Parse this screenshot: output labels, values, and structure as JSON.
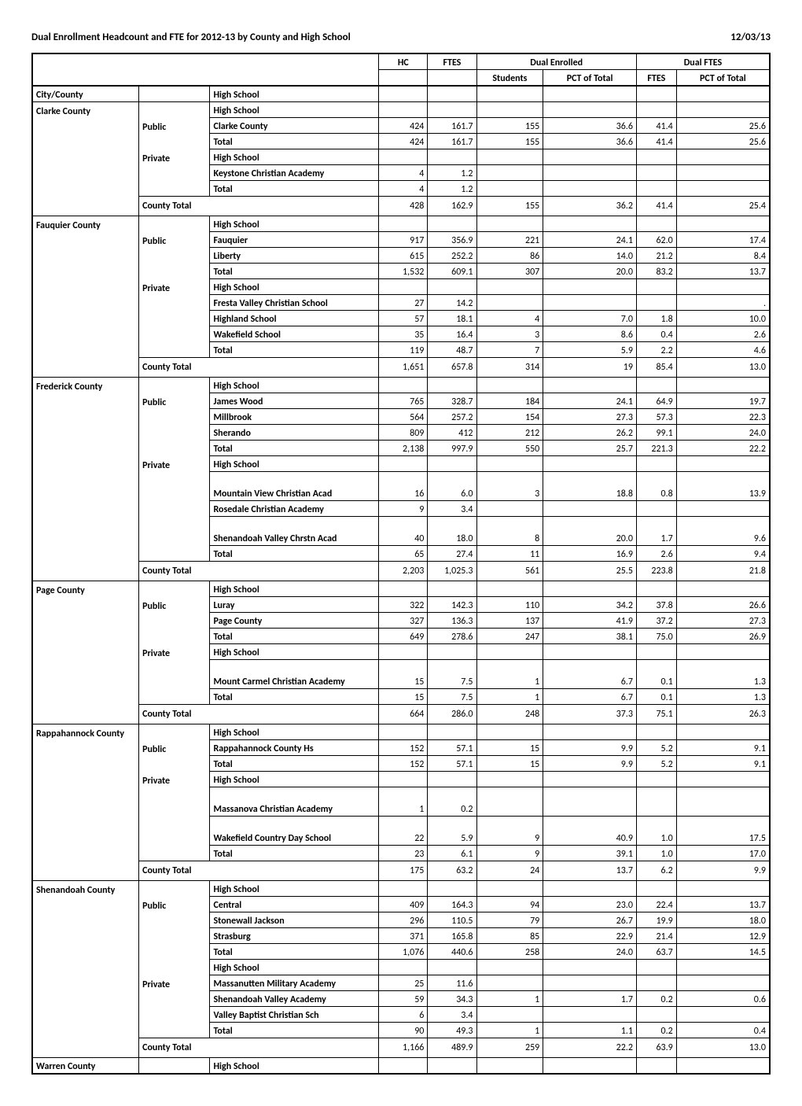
{
  "title": "Dual Enrollment Headcount and FTE for 2012-13 by County and High School",
  "date": "12/03/13",
  "headers": {
    "hc": "HC",
    "ftes": "FTES",
    "dual_enrolled": "Dual Enrolled",
    "dual_ftes": "Dual FTES",
    "students": "Students",
    "pct_of_total": "PCT of Total",
    "ftes2": "FTES",
    "pct_of_total2": "PCT of Total",
    "city_county": "City/County",
    "high_school": "High School"
  },
  "labels": {
    "public": "Public",
    "private": "Private",
    "total": "Total",
    "county_total": "County Total",
    "high_school": "High School"
  },
  "counties": [
    {
      "name": "Clarke County",
      "public": [
        {
          "name": "Clarke County",
          "hc": "424",
          "ftes": "161.7",
          "students": "155",
          "pct1": "36.6",
          "ftes2": "41.4",
          "pct2": "25.6"
        }
      ],
      "public_total": {
        "hc": "424",
        "ftes": "161.7",
        "students": "155",
        "pct1": "36.6",
        "ftes2": "41.4",
        "pct2": "25.6"
      },
      "private": [
        {
          "name": "Keystone Christian Academy",
          "hc": "4",
          "ftes": "1.2",
          "students": "",
          "pct1": "",
          "ftes2": "",
          "pct2": ""
        }
      ],
      "private_total": {
        "hc": "4",
        "ftes": "1.2",
        "students": "",
        "pct1": "",
        "ftes2": "",
        "pct2": ""
      },
      "county_total": {
        "hc": "428",
        "ftes": "162.9",
        "students": "155",
        "pct1": "36.2",
        "ftes2": "41.4",
        "pct2": "25.4"
      }
    },
    {
      "name": "Fauquier County",
      "public": [
        {
          "name": "Fauquier",
          "hc": "917",
          "ftes": "356.9",
          "students": "221",
          "pct1": "24.1",
          "ftes2": "62.0",
          "pct2": "17.4"
        },
        {
          "name": "Liberty",
          "hc": "615",
          "ftes": "252.2",
          "students": "86",
          "pct1": "14.0",
          "ftes2": "21.2",
          "pct2": "8.4"
        }
      ],
      "public_total": {
        "hc": "1,532",
        "ftes": "609.1",
        "students": "307",
        "pct1": "20.0",
        "ftes2": "83.2",
        "pct2": "13.7"
      },
      "private": [
        {
          "name": "Fresta Valley Christian School",
          "hc": "27",
          "ftes": "14.2",
          "students": "",
          "pct1": "",
          "ftes2": "",
          "pct2": "."
        },
        {
          "name": "Highland School",
          "hc": "57",
          "ftes": "18.1",
          "students": "4",
          "pct1": "7.0",
          "ftes2": "1.8",
          "pct2": "10.0"
        },
        {
          "name": "Wakefield School",
          "hc": "35",
          "ftes": "16.4",
          "students": "3",
          "pct1": "8.6",
          "ftes2": "0.4",
          "pct2": "2.6"
        }
      ],
      "private_total": {
        "hc": "119",
        "ftes": "48.7",
        "students": "7",
        "pct1": "5.9",
        "ftes2": "2.2",
        "pct2": "4.6"
      },
      "county_total": {
        "hc": "1,651",
        "ftes": "657.8",
        "students": "314",
        "pct1": "19",
        "ftes2": "85.4",
        "pct2": "13.0"
      }
    },
    {
      "name": "Frederick County",
      "public": [
        {
          "name": "James Wood",
          "hc": "765",
          "ftes": "328.7",
          "students": "184",
          "pct1": "24.1",
          "ftes2": "64.9",
          "pct2": "19.7"
        },
        {
          "name": "Millbrook",
          "hc": "564",
          "ftes": "257.2",
          "students": "154",
          "pct1": "27.3",
          "ftes2": "57.3",
          "pct2": "22.3"
        },
        {
          "name": "Sherando",
          "hc": "809",
          "ftes": "412",
          "students": "212",
          "pct1": "26.2",
          "ftes2": "99.1",
          "pct2": "24.0"
        }
      ],
      "public_total": {
        "hc": "2,138",
        "ftes": "997.9",
        "students": "550",
        "pct1": "25.7",
        "ftes2": "221.3",
        "pct2": "22.2"
      },
      "private": [
        {
          "name": "Mountain View Christian Acad",
          "tall": true,
          "hc": "16",
          "ftes": "6.0",
          "students": "3",
          "pct1": "18.8",
          "ftes2": "0.8",
          "pct2": "13.9"
        },
        {
          "name": "Rosedale Christian Academy",
          "hc": "9",
          "ftes": "3.4",
          "students": "",
          "pct1": "",
          "ftes2": "",
          "pct2": ""
        },
        {
          "name": "Shenandoah Valley Chrstn Acad",
          "tall": true,
          "hc": "40",
          "ftes": "18.0",
          "students": "8",
          "pct1": "20.0",
          "ftes2": "1.7",
          "pct2": "9.6"
        }
      ],
      "private_total": {
        "hc": "65",
        "ftes": "27.4",
        "students": "11",
        "pct1": "16.9",
        "ftes2": "2.6",
        "pct2": "9.4"
      },
      "county_total": {
        "hc": "2,203",
        "ftes": "1,025.3",
        "students": "561",
        "pct1": "25.5",
        "ftes2": "223.8",
        "pct2": "21.8"
      }
    },
    {
      "name": "Page County",
      "public": [
        {
          "name": "Luray",
          "hc": "322",
          "ftes": "142.3",
          "students": "110",
          "pct1": "34.2",
          "ftes2": "37.8",
          "pct2": "26.6"
        },
        {
          "name": "Page County",
          "hc": "327",
          "ftes": "136.3",
          "students": "137",
          "pct1": "41.9",
          "ftes2": "37.2",
          "pct2": "27.3"
        }
      ],
      "public_total": {
        "hc": "649",
        "ftes": "278.6",
        "students": "247",
        "pct1": "38.1",
        "ftes2": "75.0",
        "pct2": "26.9"
      },
      "private": [
        {
          "name": "Mount Carmel Christian Academy",
          "tall": true,
          "hc": "15",
          "ftes": "7.5",
          "students": "1",
          "pct1": "6.7",
          "ftes2": "0.1",
          "pct2": "1.3"
        }
      ],
      "private_total": {
        "hc": "15",
        "ftes": "7.5",
        "students": "1",
        "pct1": "6.7",
        "ftes2": "0.1",
        "pct2": "1.3"
      },
      "county_total": {
        "hc": "664",
        "ftes": "286.0",
        "students": "248",
        "pct1": "37.3",
        "ftes2": "75.1",
        "pct2": "26.3"
      }
    },
    {
      "name": "Rappahannock County",
      "public": [
        {
          "name": "Rappahannock County Hs",
          "hc": "152",
          "ftes": "57.1",
          "students": "15",
          "pct1": "9.9",
          "ftes2": "5.2",
          "pct2": "9.1"
        }
      ],
      "public_total": {
        "hc": "152",
        "ftes": "57.1",
        "students": "15",
        "pct1": "9.9",
        "ftes2": "5.2",
        "pct2": "9.1"
      },
      "private": [
        {
          "name": "Massanova Christian Academy",
          "tall": true,
          "hc": "1",
          "ftes": "0.2",
          "students": "",
          "pct1": "",
          "ftes2": "",
          "pct2": ""
        },
        {
          "name": "Wakefield Country Day School",
          "tall": true,
          "hc": "22",
          "ftes": "5.9",
          "students": "9",
          "pct1": "40.9",
          "ftes2": "1.0",
          "pct2": "17.5"
        }
      ],
      "private_total": {
        "hc": "23",
        "ftes": "6.1",
        "students": "9",
        "pct1": "39.1",
        "ftes2": "1.0",
        "pct2": "17.0"
      },
      "county_total": {
        "hc": "175",
        "ftes": "63.2",
        "students": "24",
        "pct1": "13.7",
        "ftes2": "6.2",
        "pct2": "9.9"
      }
    },
    {
      "name": "Shenandoah County",
      "public": [
        {
          "name": "Central",
          "hc": "409",
          "ftes": "164.3",
          "students": "94",
          "pct1": "23.0",
          "ftes2": "22.4",
          "pct2": "13.7"
        },
        {
          "name": "Stonewall Jackson",
          "hc": "296",
          "ftes": "110.5",
          "students": "79",
          "pct1": "26.7",
          "ftes2": "19.9",
          "pct2": "18.0"
        },
        {
          "name": "Strasburg",
          "hc": "371",
          "ftes": "165.8",
          "students": "85",
          "pct1": "22.9",
          "ftes2": "21.4",
          "pct2": "12.9"
        }
      ],
      "public_total": {
        "hc": "1,076",
        "ftes": "440.6",
        "students": "258",
        "pct1": "24.0",
        "ftes2": "63.7",
        "pct2": "14.5"
      },
      "private_hs_label_between": true,
      "private": [
        {
          "name": "Massanutten Military Academy",
          "hc": "25",
          "ftes": "11.6",
          "students": "",
          "pct1": "",
          "ftes2": "",
          "pct2": ""
        },
        {
          "name": "Shenandoah Valley Academy",
          "hc": "59",
          "ftes": "34.3",
          "students": "1",
          "pct1": "1.7",
          "ftes2": "0.2",
          "pct2": "0.6"
        },
        {
          "name": "Valley Baptist Christian Sch",
          "hc": "6",
          "ftes": "3.4",
          "students": "",
          "pct1": "",
          "ftes2": "",
          "pct2": ""
        }
      ],
      "private_total": {
        "hc": "90",
        "ftes": "49.3",
        "students": "1",
        "pct1": "1.1",
        "ftes2": "0.2",
        "pct2": "0.4"
      },
      "county_total": {
        "hc": "1,166",
        "ftes": "489.9",
        "students": "259",
        "pct1": "22.2",
        "ftes2": "63.9",
        "pct2": "13.0"
      }
    },
    {
      "name": "Warren County",
      "trailing_header_only": true
    }
  ]
}
